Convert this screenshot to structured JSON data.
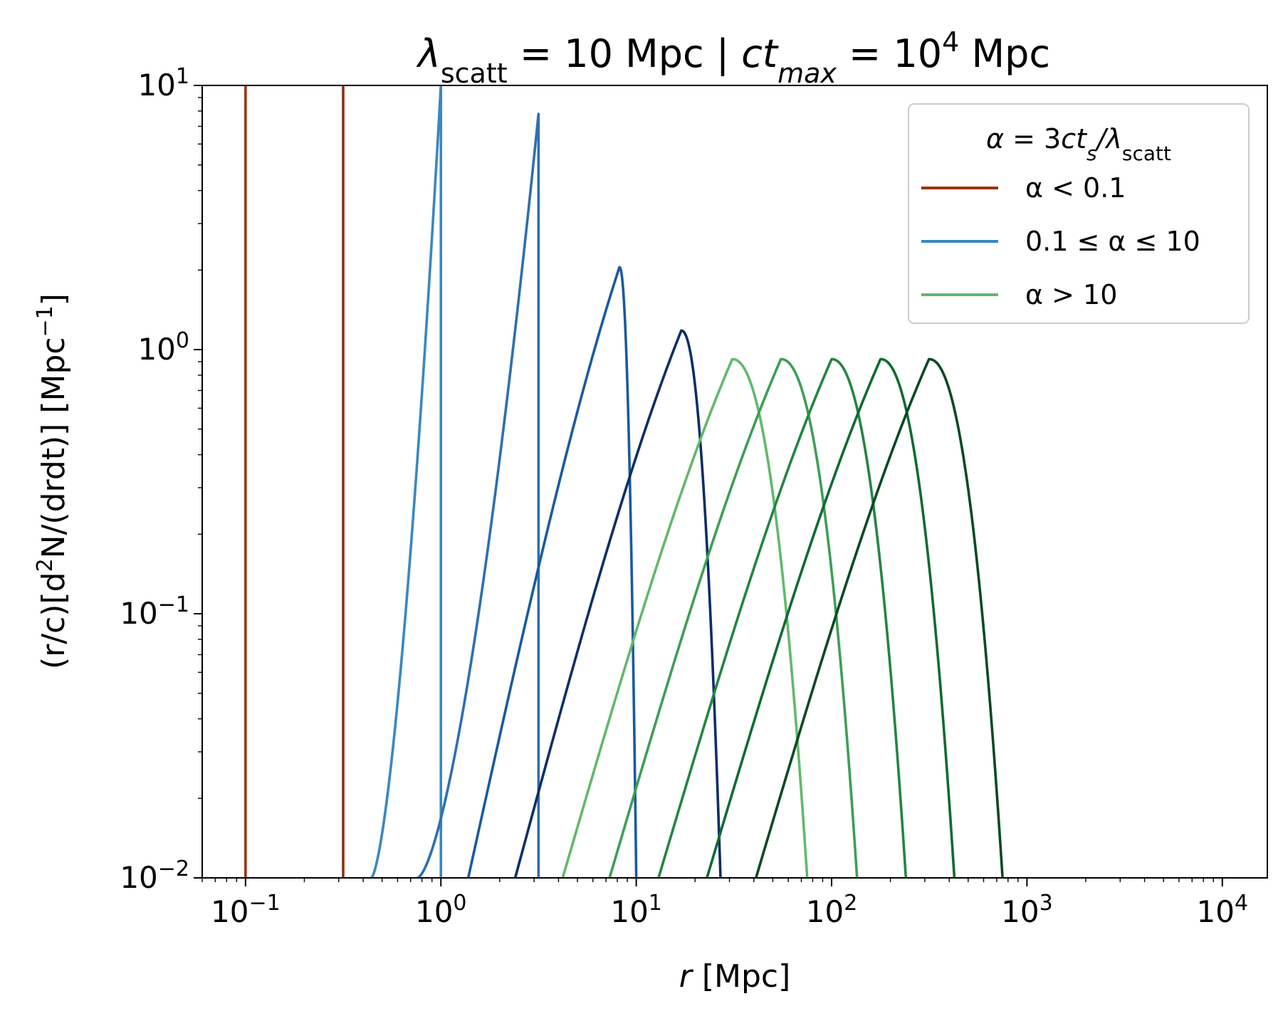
{
  "chart_data": {
    "type": "line",
    "title": {
      "lambda_sub": "scatt",
      "mid": " = 10 Mpc | ",
      "ct": "ct",
      "ct_sub": "max",
      "eq": " = 10",
      "exp": "4",
      "unit": " Mpc"
    },
    "xlabel": {
      "var": "r",
      "unit": " [Mpc]"
    },
    "ylabel": {
      "prefix": "(r/c)[d",
      "sup2": "2",
      "mid": "N/(drdt)] [Mpc",
      "supneg": "−1",
      "suffix": "]"
    },
    "x_scale": "log",
    "y_scale": "log",
    "xlim": [
      0.06,
      17000
    ],
    "ylim": [
      0.01,
      10
    ],
    "x_ticks": [
      {
        "value": 0.1,
        "base": "10",
        "exp": "−1"
      },
      {
        "value": 1,
        "base": "10",
        "exp": "0"
      },
      {
        "value": 10,
        "base": "10",
        "exp": "1"
      },
      {
        "value": 100,
        "base": "10",
        "exp": "2"
      },
      {
        "value": 1000,
        "base": "10",
        "exp": "3"
      },
      {
        "value": 10000,
        "base": "10",
        "exp": "4"
      }
    ],
    "y_ticks": [
      {
        "value": 0.01,
        "base": "10",
        "exp": "−2"
      },
      {
        "value": 0.1,
        "base": "10",
        "exp": "−1"
      },
      {
        "value": 1,
        "base": "10",
        "exp": "0"
      },
      {
        "value": 10,
        "base": "10",
        "exp": "1"
      }
    ],
    "grid": false,
    "legend": {
      "placement": "top-right",
      "title": "α = 3ct",
      "title_sub1": "s",
      "title_mid": "/λ",
      "title_sub2": "scatt",
      "entries": [
        {
          "label": "α < 0.1",
          "color": "#993311"
        },
        {
          "label": "0.1 ≤ α ≤ 10",
          "color": "#3a87c0"
        },
        {
          "label": "α > 10",
          "color": "#62b86b"
        }
      ]
    },
    "series": [
      {
        "group": "alpha<0.1",
        "kind": "vertical",
        "color": "#993311",
        "x": 0.1
      },
      {
        "group": "alpha<0.1",
        "kind": "vertical",
        "color": "#8b3010",
        "x": 0.316
      },
      {
        "group": "0.1<=alpha<=10",
        "kind": "sharp",
        "color": "#3a87c0",
        "x_start": 0.44,
        "x_edge": 1.0,
        "y_peak": 10
      },
      {
        "group": "0.1<=alpha<=10",
        "kind": "sharp",
        "color": "#2e6fb0",
        "x_start": 0.76,
        "x_edge": 3.16,
        "y_peak": 7.8
      },
      {
        "group": "0.1<=alpha<=10",
        "kind": "hump",
        "color": "#1a5aa0",
        "x_start": 1.38,
        "x_peak": 8.2,
        "x_end": 10.0,
        "y_peak": 2.05
      },
      {
        "group": "0.1<=alpha<=10",
        "kind": "hump",
        "color": "#0c2e66",
        "x_start": 2.4,
        "x_peak": 17.0,
        "x_end": 27.0,
        "y_peak": 1.18
      },
      {
        "group": "alpha>10",
        "kind": "hump",
        "color": "#62b86b",
        "x_start": 4.2,
        "x_peak": 31.0,
        "x_end": 75.0,
        "y_peak": 0.92
      },
      {
        "group": "alpha>10",
        "kind": "hump",
        "color": "#3e9e55",
        "x_start": 7.3,
        "x_peak": 55.0,
        "x_end": 135.0,
        "y_peak": 0.92
      },
      {
        "group": "alpha>10",
        "kind": "hump",
        "color": "#238542",
        "x_start": 13.0,
        "x_peak": 100.0,
        "x_end": 240.0,
        "y_peak": 0.92
      },
      {
        "group": "alpha>10",
        "kind": "hump",
        "color": "#0f6b31",
        "x_start": 23.0,
        "x_peak": 178.0,
        "x_end": 425.0,
        "y_peak": 0.92
      },
      {
        "group": "alpha>10",
        "kind": "hump",
        "color": "#064a22",
        "x_start": 41.0,
        "x_peak": 315.0,
        "x_end": 750.0,
        "y_peak": 0.92
      }
    ]
  }
}
